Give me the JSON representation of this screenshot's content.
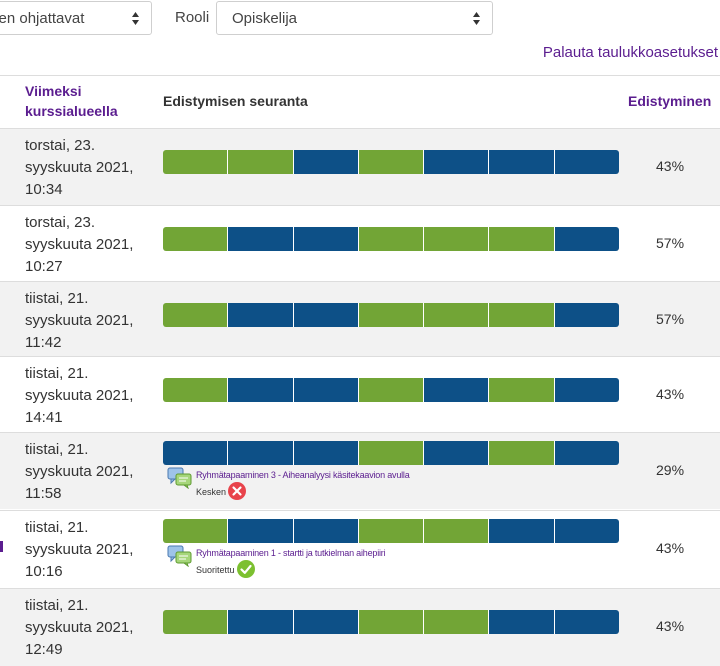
{
  "filters": {
    "group_select_value": "sen ohjattavat",
    "role_label": "Rooli",
    "role_select_value": "Opiskelija"
  },
  "reset_link": "Palauta taulukkoasetukset",
  "table": {
    "headers": {
      "last_access_line1": "Viimeksi",
      "last_access_line2": "kurssialueella",
      "tracking": "Edistymisen seuranta",
      "progress": "Edistyminen"
    },
    "rows": [
      {
        "date_l1": "torstai, 23.",
        "date_l2": "syyskuuta 2021,",
        "date_l3": "10:34",
        "progress": "43%",
        "completion": [
          1,
          1,
          0,
          1,
          0,
          0,
          0
        ]
      },
      {
        "date_l1": "torstai, 23.",
        "date_l2": "syyskuuta 2021,",
        "date_l3": "10:27",
        "progress": "57%",
        "completion": [
          1,
          0,
          0,
          1,
          1,
          1,
          0
        ]
      },
      {
        "date_l1": "tiistai, 21.",
        "date_l2": "syyskuuta 2021,",
        "date_l3": "11:42",
        "progress": "57%",
        "completion": [
          1,
          0,
          0,
          1,
          1,
          1,
          0
        ]
      },
      {
        "date_l1": "tiistai, 21.",
        "date_l2": "syyskuuta 2021,",
        "date_l3": "14:41",
        "progress": "43%",
        "completion": [
          1,
          0,
          0,
          1,
          0,
          1,
          0
        ]
      },
      {
        "date_l1": "tiistai, 21.",
        "date_l2": "syyskuuta 2021,",
        "date_l3": "11:58",
        "progress": "29%",
        "completion": [
          0,
          0,
          0,
          1,
          0,
          1,
          0
        ],
        "popup": {
          "activity": "Ryhmätapaaminen 3 - Aiheanalyysi käsitekaavion avulla",
          "status": "Kesken",
          "status_type": "incomplete"
        }
      },
      {
        "date_l1": "tiistai, 21.",
        "date_l2": "syyskuuta 2021,",
        "date_l3": "10:16",
        "progress": "43%",
        "completion": [
          1,
          0,
          0,
          1,
          1,
          0,
          0
        ],
        "popup": {
          "activity": "Ryhmätapaaminen 1 - startti ja tutkielman aihepiiri",
          "status": "Suoritettu",
          "status_type": "complete"
        }
      },
      {
        "date_l1": "tiistai, 21.",
        "date_l2": "syyskuuta 2021,",
        "date_l3": "12:49",
        "progress": "43%",
        "completion": [
          1,
          0,
          0,
          1,
          1,
          0,
          0
        ]
      }
    ]
  },
  "colors": {
    "complete": "#72a536",
    "incomplete": "#0d5087",
    "link": "#5b1d8f",
    "row_alt": "#f2f2f2"
  },
  "icons": {
    "select_chevron": "up-down-chevron-icon",
    "chat": "chat-bubbles-icon",
    "incomplete": "red-x-circle-icon",
    "complete": "green-check-circle-icon"
  }
}
